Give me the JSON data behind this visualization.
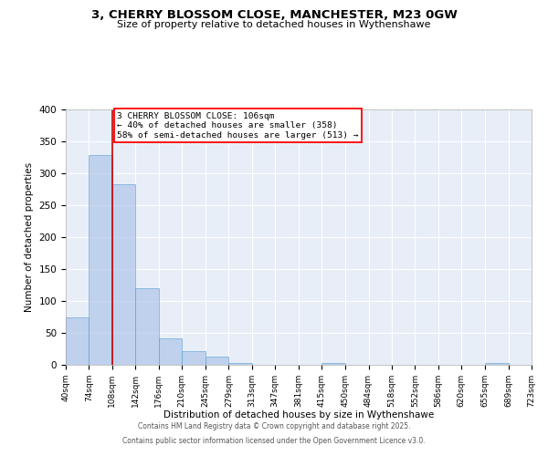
{
  "title_line1": "3, CHERRY BLOSSOM CLOSE, MANCHESTER, M23 0GW",
  "title_line2": "Size of property relative to detached houses in Wythenshawe",
  "xlabel": "Distribution of detached houses by size in Wythenshawe",
  "ylabel": "Number of detached properties",
  "bin_edges": [
    40,
    74,
    108,
    142,
    176,
    210,
    245,
    279,
    313,
    347,
    381,
    415,
    450,
    484,
    518,
    552,
    586,
    620,
    655,
    689,
    723
  ],
  "bar_heights": [
    75,
    328,
    283,
    120,
    42,
    22,
    13,
    3,
    0,
    0,
    0,
    3,
    0,
    0,
    0,
    0,
    0,
    0,
    3,
    0
  ],
  "bar_color": "#aec6e8",
  "bar_edge_color": "#5a9fd4",
  "bar_alpha": 0.7,
  "property_line_x": 108,
  "property_line_color": "#cc0000",
  "ylim": [
    0,
    400
  ],
  "yticks": [
    0,
    50,
    100,
    150,
    200,
    250,
    300,
    350,
    400
  ],
  "annotation_text": "3 CHERRY BLOSSOM CLOSE: 106sqm\n← 40% of detached houses are smaller (358)\n58% of semi-detached houses are larger (513) →",
  "footer_line1": "Contains HM Land Registry data © Crown copyright and database right 2025.",
  "footer_line2": "Contains public sector information licensed under the Open Government Licence v3.0.",
  "background_color": "#e8eef8",
  "grid_color": "#ffffff",
  "fig_bg_color": "#ffffff"
}
